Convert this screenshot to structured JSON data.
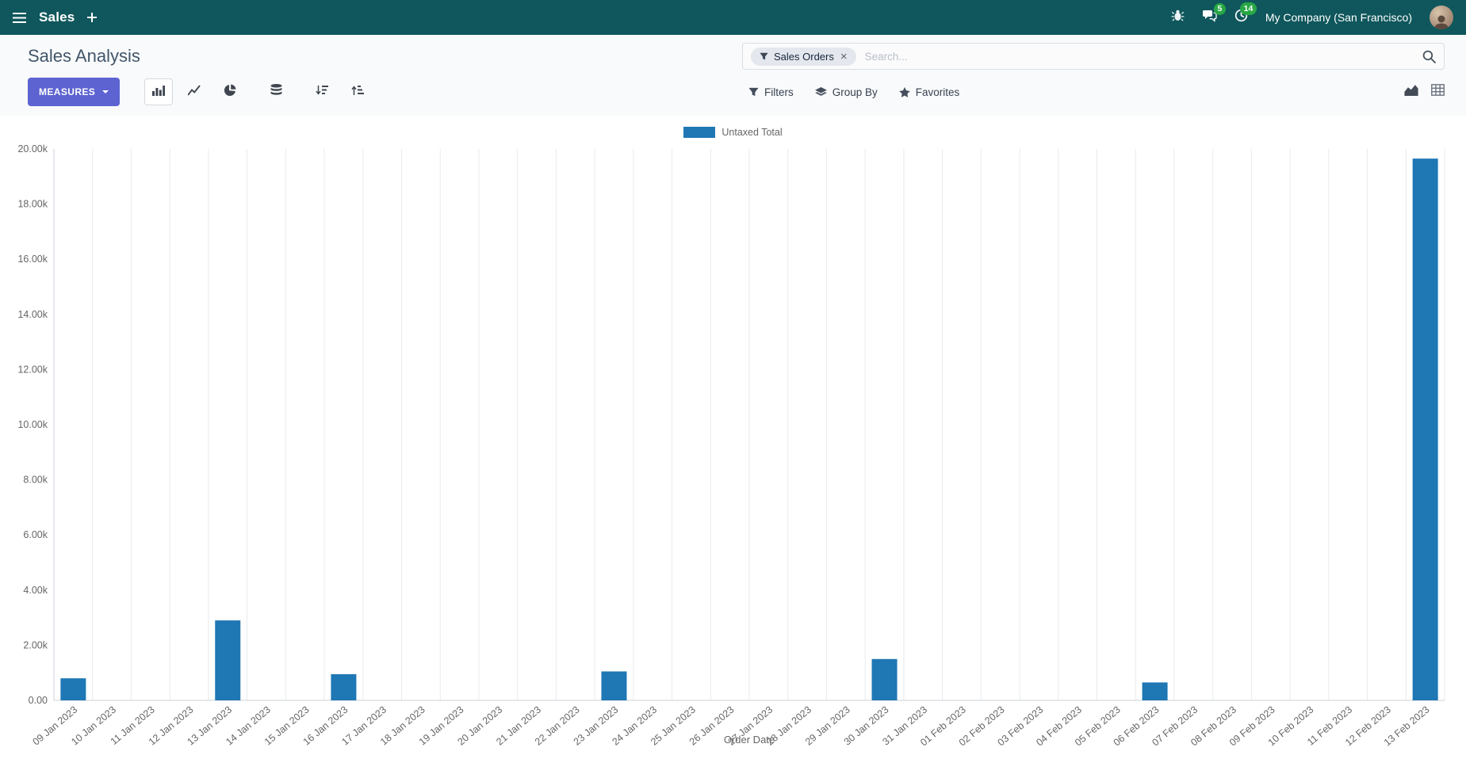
{
  "navbar": {
    "app_name": "Sales",
    "company": "My Company (San Francisco)",
    "messages_badge": "5",
    "activities_badge": "14"
  },
  "control_panel": {
    "title": "Sales Analysis",
    "measures_label": "MEASURES",
    "filters_label": "Filters",
    "group_by_label": "Group By",
    "favorites_label": "Favorites",
    "search": {
      "facet_label": "Sales Orders",
      "facet_remove": "×",
      "placeholder": "Search..."
    }
  },
  "icons": {
    "menu": "hamburger",
    "plus": "plus",
    "debug": "bug",
    "messages": "speech-bubbles",
    "activities": "clock",
    "filters": "funnel",
    "group_by": "layers",
    "favorites": "star",
    "search": "magnifier",
    "bar_chart": "vertical-bars",
    "line_chart": "polyline",
    "pie_chart": "pie",
    "stacked": "database-stack",
    "sort_desc": "arrow-down-bars",
    "sort_asc": "arrow-up-bars",
    "graph_view": "area-chart",
    "pivot_view": "grid-table"
  },
  "colors": {
    "navbar_bg": "#0f575c",
    "primary_button": "#5d63d1",
    "bar": "#1f77b4",
    "badge": "#28a745"
  },
  "chart_data": {
    "type": "bar",
    "title": "",
    "xlabel": "Order Date",
    "ylabel": "",
    "ylim": [
      0,
      20000
    ],
    "ytick_labels": [
      "0.00",
      "2.00k",
      "4.00k",
      "6.00k",
      "8.00k",
      "10.00k",
      "12.00k",
      "14.00k",
      "16.00k",
      "18.00k",
      "20.00k"
    ],
    "grid": "vertical-only",
    "legend_position": "top",
    "categories": [
      "09 Jan 2023",
      "10 Jan 2023",
      "11 Jan 2023",
      "12 Jan 2023",
      "13 Jan 2023",
      "14 Jan 2023",
      "15 Jan 2023",
      "16 Jan 2023",
      "17 Jan 2023",
      "18 Jan 2023",
      "19 Jan 2023",
      "20 Jan 2023",
      "21 Jan 2023",
      "22 Jan 2023",
      "23 Jan 2023",
      "24 Jan 2023",
      "25 Jan 2023",
      "26 Jan 2023",
      "27 Jan 2023",
      "28 Jan 2023",
      "29 Jan 2023",
      "30 Jan 2023",
      "31 Jan 2023",
      "01 Feb 2023",
      "02 Feb 2023",
      "03 Feb 2023",
      "04 Feb 2023",
      "05 Feb 2023",
      "06 Feb 2023",
      "07 Feb 2023",
      "08 Feb 2023",
      "09 Feb 2023",
      "10 Feb 2023",
      "11 Feb 2023",
      "12 Feb 2023",
      "13 Feb 2023"
    ],
    "series": [
      {
        "name": "Untaxed Total",
        "color": "#1f77b4",
        "values": [
          800,
          0,
          0,
          0,
          2900,
          0,
          0,
          950,
          0,
          0,
          0,
          0,
          0,
          0,
          1050,
          0,
          0,
          0,
          0,
          0,
          0,
          1500,
          0,
          0,
          0,
          0,
          0,
          0,
          650,
          0,
          0,
          0,
          0,
          0,
          0,
          19650
        ]
      }
    ]
  }
}
